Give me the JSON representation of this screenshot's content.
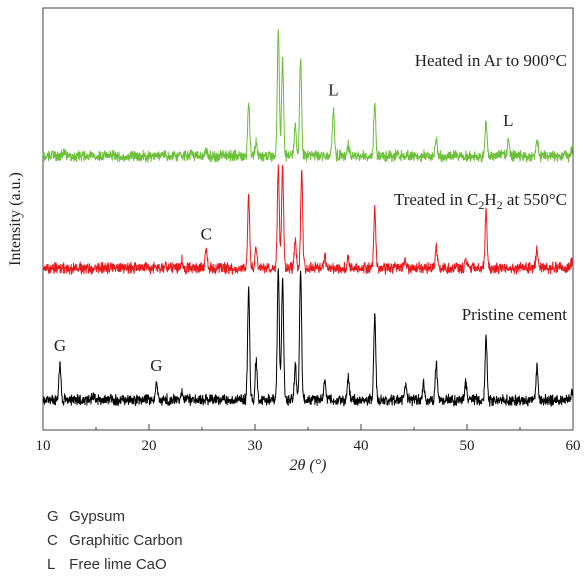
{
  "chart_data": {
    "type": "line",
    "title": "",
    "xlabel": "2θ (°)",
    "ylabel": "Intensity (a.u.)",
    "xlim": [
      10,
      60
    ],
    "xticks": [
      10,
      20,
      30,
      40,
      50,
      60
    ],
    "y_tick_labels": false,
    "grid": false,
    "series": [
      {
        "name": "Pristine cement",
        "color": "#000000",
        "peaks": [
          {
            "two_theta": 11.6,
            "intensity": 0.28
          },
          {
            "two_theta": 14.7,
            "intensity": 0.04
          },
          {
            "two_theta": 20.7,
            "intensity": 0.13
          },
          {
            "two_theta": 23.1,
            "intensity": 0.05
          },
          {
            "two_theta": 29.4,
            "intensity": 0.84
          },
          {
            "two_theta": 30.1,
            "intensity": 0.3
          },
          {
            "two_theta": 32.2,
            "intensity": 1.0
          },
          {
            "two_theta": 32.6,
            "intensity": 0.93
          },
          {
            "two_theta": 33.8,
            "intensity": 0.27
          },
          {
            "two_theta": 34.3,
            "intensity": 1.0
          },
          {
            "two_theta": 36.6,
            "intensity": 0.15
          },
          {
            "two_theta": 38.8,
            "intensity": 0.17
          },
          {
            "two_theta": 41.3,
            "intensity": 0.64
          },
          {
            "two_theta": 44.2,
            "intensity": 0.12
          },
          {
            "two_theta": 45.9,
            "intensity": 0.12
          },
          {
            "two_theta": 47.1,
            "intensity": 0.27
          },
          {
            "two_theta": 49.9,
            "intensity": 0.13
          },
          {
            "two_theta": 51.8,
            "intensity": 0.47
          },
          {
            "two_theta": 56.6,
            "intensity": 0.25
          },
          {
            "two_theta": 59.9,
            "intensity": 0.07
          }
        ]
      },
      {
        "name": "Treated in C2H2 at 550°C",
        "color": "#e8191c",
        "peaks": [
          {
            "two_theta": 23.1,
            "intensity": 0.08
          },
          {
            "two_theta": 25.4,
            "intensity": 0.16
          },
          {
            "two_theta": 29.4,
            "intensity": 0.7
          },
          {
            "two_theta": 30.1,
            "intensity": 0.22
          },
          {
            "two_theta": 32.2,
            "intensity": 0.97
          },
          {
            "two_theta": 32.6,
            "intensity": 1.0
          },
          {
            "two_theta": 33.8,
            "intensity": 0.27
          },
          {
            "two_theta": 34.4,
            "intensity": 0.93
          },
          {
            "two_theta": 36.6,
            "intensity": 0.1
          },
          {
            "two_theta": 38.8,
            "intensity": 0.1
          },
          {
            "two_theta": 41.3,
            "intensity": 0.55
          },
          {
            "two_theta": 44.2,
            "intensity": 0.07
          },
          {
            "two_theta": 47.1,
            "intensity": 0.2
          },
          {
            "two_theta": 49.9,
            "intensity": 0.1
          },
          {
            "two_theta": 51.8,
            "intensity": 0.55
          },
          {
            "two_theta": 56.6,
            "intensity": 0.18
          },
          {
            "two_theta": 59.9,
            "intensity": 0.07
          }
        ]
      },
      {
        "name": "Heated in Ar to 900°C",
        "color": "#6cbf3a",
        "peaks": [
          {
            "two_theta": 12.0,
            "intensity": 0.04
          },
          {
            "two_theta": 25.4,
            "intensity": 0.05
          },
          {
            "two_theta": 29.4,
            "intensity": 0.42
          },
          {
            "two_theta": 30.1,
            "intensity": 0.1
          },
          {
            "two_theta": 32.2,
            "intensity": 1.0
          },
          {
            "two_theta": 32.6,
            "intensity": 0.77
          },
          {
            "two_theta": 33.8,
            "intensity": 0.24
          },
          {
            "two_theta": 34.3,
            "intensity": 0.77
          },
          {
            "two_theta": 37.4,
            "intensity": 0.38
          },
          {
            "two_theta": 38.8,
            "intensity": 0.08
          },
          {
            "two_theta": 41.3,
            "intensity": 0.43
          },
          {
            "two_theta": 47.1,
            "intensity": 0.14
          },
          {
            "two_theta": 51.8,
            "intensity": 0.27
          },
          {
            "two_theta": 53.9,
            "intensity": 0.14
          },
          {
            "two_theta": 56.6,
            "intensity": 0.13
          },
          {
            "two_theta": 59.9,
            "intensity": 0.06
          }
        ]
      }
    ],
    "curve_labels": [
      {
        "series": 0,
        "text": "Pristine cement"
      },
      {
        "series": 1,
        "text_prefix": "Treated in C",
        "sub1": "2",
        "text_mid": "H",
        "sub2": "2",
        "text_suffix": " at 550°C"
      },
      {
        "series": 2,
        "text": "Heated in Ar to 900°C"
      }
    ],
    "peak_annotations": [
      {
        "series": 0,
        "two_theta": 11.6,
        "label": "G"
      },
      {
        "series": 0,
        "two_theta": 20.7,
        "label": "G"
      },
      {
        "series": 1,
        "two_theta": 25.4,
        "label": "C"
      },
      {
        "series": 2,
        "two_theta": 37.4,
        "label": "L"
      },
      {
        "series": 2,
        "two_theta": 53.9,
        "label": "L"
      }
    ],
    "key": [
      {
        "code": "G",
        "meaning": "Gypsum"
      },
      {
        "code": "C",
        "meaning": "Graphitic Carbon"
      },
      {
        "code": "L",
        "meaning": "Free lime CaO"
      }
    ]
  }
}
